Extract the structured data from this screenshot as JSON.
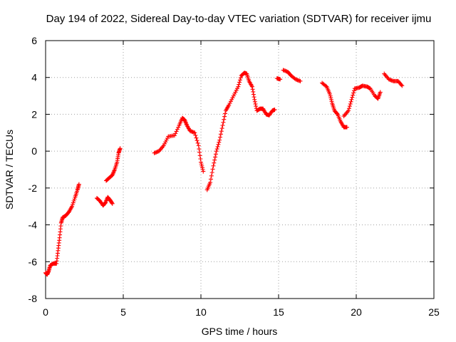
{
  "chart_data": {
    "type": "scatter",
    "title": "Day 194 of 2022, Sidereal Day-to-day VTEC variation (SDTVAR) for receiver ijmu",
    "xlabel": "GPS time / hours",
    "ylabel": "SDTVAR / TECUs",
    "xlim": [
      0,
      25
    ],
    "ylim": [
      -8,
      6
    ],
    "xticks": [
      "0",
      "5",
      "10",
      "15",
      "20",
      "25"
    ],
    "yticks": [
      "6",
      "4",
      "2",
      "0",
      "-2",
      "-4",
      "-6",
      "-8"
    ],
    "grid": true,
    "marker": "plus",
    "color": "#ff0000",
    "series": [
      {
        "name": "SDTVAR",
        "segments": [
          [
            [
              0.0,
              -6.6
            ],
            [
              0.1,
              -6.7
            ],
            [
              0.2,
              -6.5
            ],
            [
              0.3,
              -6.2
            ],
            [
              0.5,
              -6.1
            ],
            [
              0.7,
              -6.1
            ],
            [
              0.8,
              -5.4
            ],
            [
              0.9,
              -4.7
            ],
            [
              1.0,
              -3.9
            ],
            [
              1.1,
              -3.6
            ],
            [
              1.3,
              -3.5
            ],
            [
              1.5,
              -3.3
            ],
            [
              1.7,
              -3.0
            ],
            [
              1.9,
              -2.5
            ],
            [
              2.05,
              -2.1
            ],
            [
              2.15,
              -1.8
            ]
          ],
          [
            [
              3.3,
              -2.55
            ],
            [
              3.5,
              -2.7
            ],
            [
              3.7,
              -2.95
            ],
            [
              3.85,
              -2.8
            ],
            [
              4.0,
              -2.5
            ],
            [
              4.15,
              -2.65
            ],
            [
              4.3,
              -2.85
            ]
          ],
          [
            [
              3.9,
              -1.6
            ],
            [
              4.1,
              -1.45
            ],
            [
              4.3,
              -1.3
            ],
            [
              4.45,
              -1.0
            ],
            [
              4.6,
              -0.6
            ],
            [
              4.7,
              -0.1
            ],
            [
              4.8,
              0.15
            ]
          ],
          [
            [
              7.0,
              -0.1
            ],
            [
              7.3,
              0.0
            ],
            [
              7.6,
              0.3
            ],
            [
              7.9,
              0.8
            ],
            [
              8.3,
              0.85
            ],
            [
              8.6,
              1.4
            ],
            [
              8.8,
              1.8
            ],
            [
              8.95,
              1.7
            ],
            [
              9.1,
              1.4
            ],
            [
              9.3,
              1.1
            ],
            [
              9.6,
              1.0
            ],
            [
              9.85,
              0.3
            ],
            [
              10.0,
              -0.6
            ],
            [
              10.15,
              -1.1
            ]
          ],
          [
            [
              10.4,
              -2.1
            ],
            [
              10.6,
              -1.7
            ],
            [
              10.8,
              -0.8
            ],
            [
              11.0,
              0.0
            ],
            [
              11.2,
              0.6
            ],
            [
              11.4,
              1.4
            ],
            [
              11.6,
              2.2
            ],
            [
              11.8,
              2.5
            ],
            [
              12.1,
              3.0
            ],
            [
              12.4,
              3.5
            ],
            [
              12.6,
              4.1
            ],
            [
              12.8,
              4.25
            ],
            [
              12.95,
              4.2
            ],
            [
              13.1,
              3.8
            ],
            [
              13.3,
              3.5
            ],
            [
              13.45,
              2.8
            ],
            [
              13.6,
              2.2
            ],
            [
              13.8,
              2.3
            ],
            [
              14.0,
              2.3
            ],
            [
              14.2,
              2.0
            ],
            [
              14.4,
              1.95
            ],
            [
              14.6,
              2.2
            ],
            [
              14.75,
              2.25
            ]
          ],
          [
            [
              14.9,
              3.95
            ],
            [
              15.1,
              3.9
            ]
          ],
          [
            [
              15.3,
              4.4
            ],
            [
              15.6,
              4.3
            ],
            [
              15.8,
              4.1
            ],
            [
              16.1,
              3.9
            ],
            [
              16.4,
              3.8
            ]
          ],
          [
            [
              17.8,
              3.7
            ],
            [
              18.1,
              3.5
            ],
            [
              18.3,
              3.1
            ],
            [
              18.45,
              2.6
            ],
            [
              18.6,
              2.2
            ],
            [
              18.8,
              2.0
            ],
            [
              19.0,
              1.6
            ],
            [
              19.2,
              1.3
            ],
            [
              19.4,
              1.3
            ]
          ],
          [
            [
              19.2,
              1.9
            ],
            [
              19.5,
              2.2
            ],
            [
              19.7,
              2.8
            ],
            [
              19.9,
              3.4
            ],
            [
              20.2,
              3.45
            ],
            [
              20.4,
              3.55
            ],
            [
              20.7,
              3.5
            ],
            [
              20.9,
              3.4
            ],
            [
              21.2,
              3.0
            ],
            [
              21.4,
              2.85
            ],
            [
              21.55,
              3.2
            ]
          ],
          [
            [
              21.8,
              4.2
            ],
            [
              22.1,
              3.9
            ],
            [
              22.4,
              3.8
            ],
            [
              22.7,
              3.8
            ],
            [
              22.95,
              3.55
            ]
          ]
        ]
      }
    ]
  }
}
